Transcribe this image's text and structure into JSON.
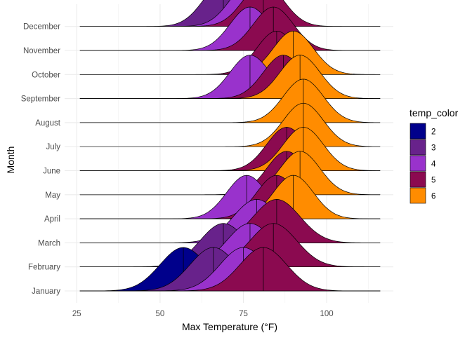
{
  "chart_data": {
    "type": "ridgeline",
    "xlabel": "Max Temperature (°F)",
    "ylabel": "Month",
    "xlim": [
      22,
      122
    ],
    "x_ticks": [
      25,
      50,
      75,
      100
    ],
    "grid": true,
    "legend_position": "right",
    "legend": {
      "title": "temp_color",
      "entries": [
        {
          "label": "2",
          "color": "#00008B"
        },
        {
          "label": "3",
          "color": "#68228B"
        },
        {
          "label": "4",
          "color": "#9932CC"
        },
        {
          "label": "5",
          "color": "#8B0A50"
        },
        {
          "label": "6",
          "color": "#FF8C00"
        }
      ]
    },
    "months": [
      {
        "name": "January",
        "densities": [
          {
            "group": "2",
            "mean": 57,
            "sd": 7
          },
          {
            "group": "3",
            "mean": 66,
            "sd": 7
          },
          {
            "group": "4",
            "mean": 75,
            "sd": 7
          },
          {
            "group": "5",
            "mean": 81,
            "sd": 7
          }
        ]
      },
      {
        "name": "February",
        "densities": [
          {
            "group": "3",
            "mean": 69,
            "sd": 7
          },
          {
            "group": "4",
            "mean": 77,
            "sd": 7
          },
          {
            "group": "5",
            "mean": 84,
            "sd": 7
          }
        ]
      },
      {
        "name": "March",
        "densities": [
          {
            "group": "4",
            "mean": 79,
            "sd": 7
          },
          {
            "group": "5",
            "mean": 85,
            "sd": 7
          }
        ]
      },
      {
        "name": "April",
        "densities": [
          {
            "group": "4",
            "mean": 76,
            "sd": 6
          },
          {
            "group": "5",
            "mean": 85,
            "sd": 6
          },
          {
            "group": "6",
            "mean": 90,
            "sd": 6
          }
        ]
      },
      {
        "name": "May",
        "densities": [
          {
            "group": "5",
            "mean": 88,
            "sd": 6
          },
          {
            "group": "6",
            "mean": 92,
            "sd": 6
          }
        ]
      },
      {
        "name": "June",
        "densities": [
          {
            "group": "5",
            "mean": 88,
            "sd": 6
          },
          {
            "group": "6",
            "mean": 93,
            "sd": 6
          }
        ]
      },
      {
        "name": "July",
        "densities": [
          {
            "group": "6",
            "mean": 93,
            "sd": 6
          }
        ]
      },
      {
        "name": "August",
        "densities": [
          {
            "group": "6",
            "mean": 93,
            "sd": 6
          }
        ]
      },
      {
        "name": "September",
        "densities": [
          {
            "group": "4",
            "mean": 77,
            "sd": 6
          },
          {
            "group": "5",
            "mean": 87,
            "sd": 6
          },
          {
            "group": "6",
            "mean": 92,
            "sd": 6
          }
        ]
      },
      {
        "name": "October",
        "densities": [
          {
            "group": "5",
            "mean": 85,
            "sd": 6
          },
          {
            "group": "6",
            "mean": 90,
            "sd": 6
          }
        ]
      },
      {
        "name": "November",
        "densities": [
          {
            "group": "4",
            "mean": 77,
            "sd": 6
          },
          {
            "group": "5",
            "mean": 84,
            "sd": 6
          }
        ]
      },
      {
        "name": "December",
        "densities": [
          {
            "group": "3",
            "mean": 69,
            "sd": 6
          },
          {
            "group": "4",
            "mean": 77,
            "sd": 6
          },
          {
            "group": "5",
            "mean": 81,
            "sd": 6
          }
        ]
      }
    ]
  }
}
